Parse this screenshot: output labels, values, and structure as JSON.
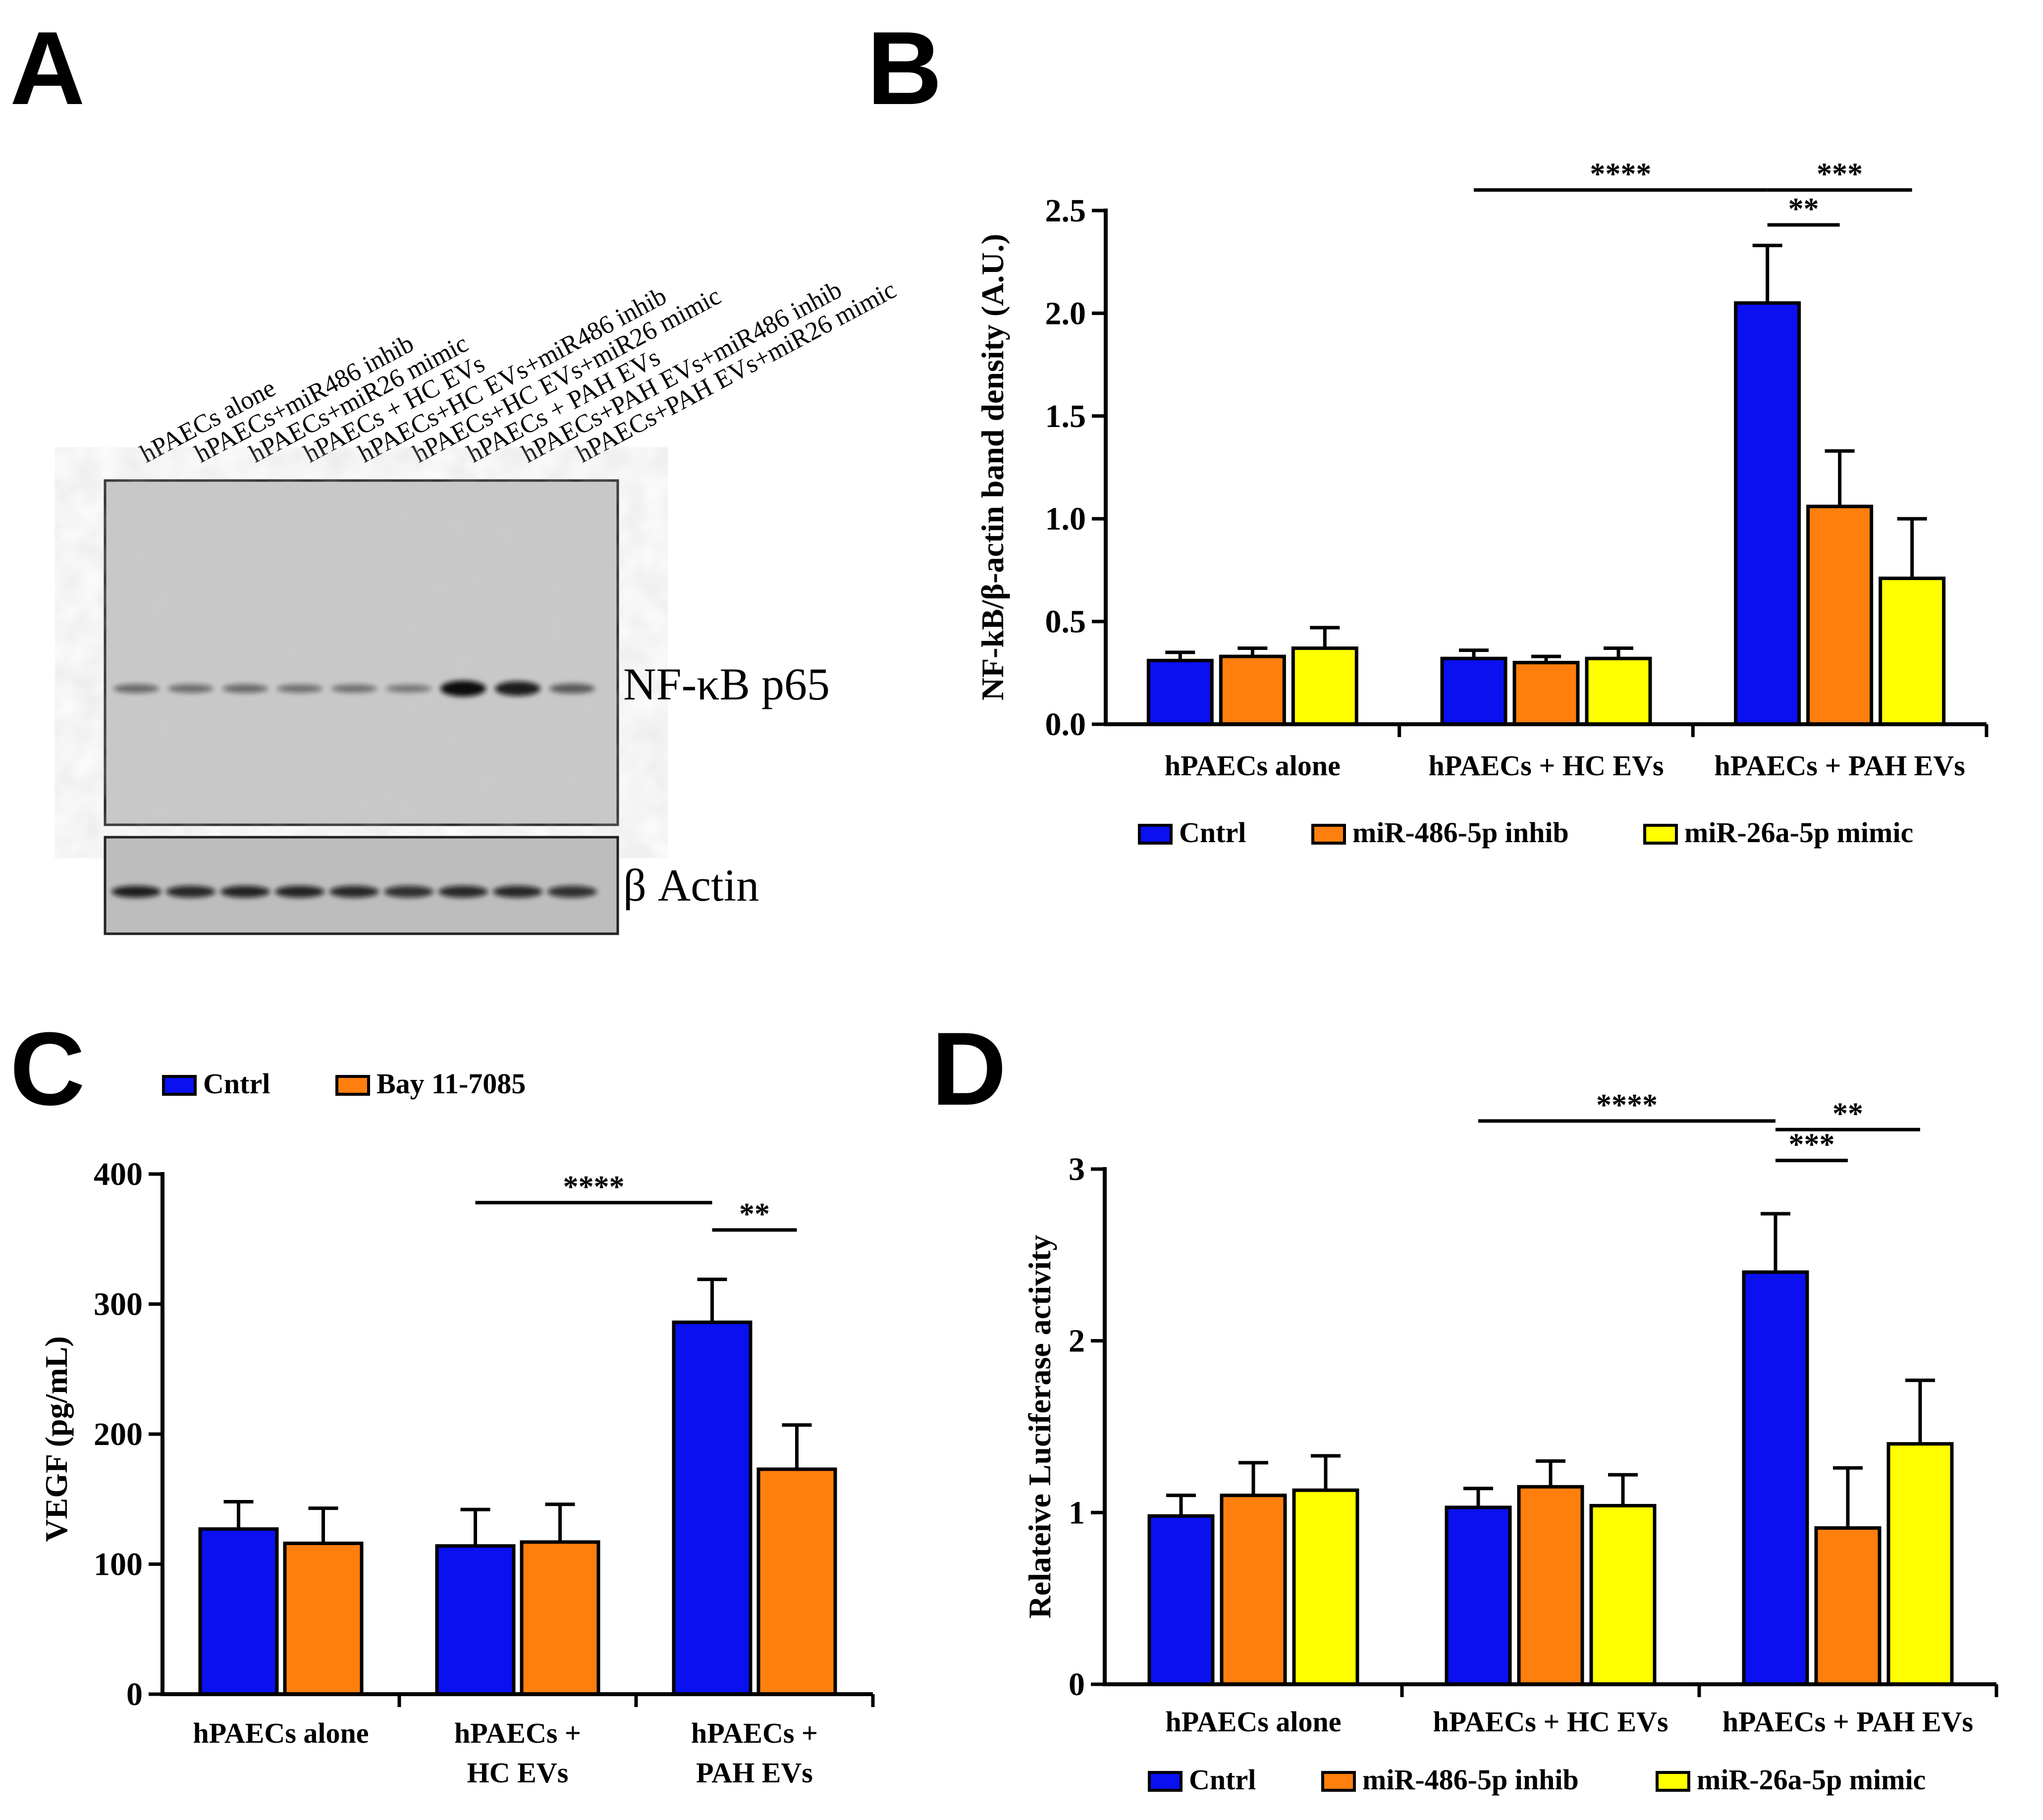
{
  "panels": {
    "A": {
      "letter": "A",
      "lane_labels": [
        "hPAECs alone",
        "hPAECs+miR486 inhib",
        "hPAECs+miR26 mimic",
        "hPAECs + HC EVs",
        "hPAECs+HC EVs+miR486 inhib",
        "hPAECs+HC EVs+miR26 mimic",
        "hPAECs + PAH EVs",
        "hPAECs+PAH EVs+miR486 inhib",
        "hPAECs+PAH EVs+miR26 mimic"
      ],
      "blot_labels": {
        "nfkb": "NF-κB p65",
        "actin": "β Actin"
      },
      "band_intensities": {
        "nfkb": [
          0.35,
          0.32,
          0.34,
          0.3,
          0.3,
          0.25,
          1.0,
          0.88,
          0.45
        ],
        "actin": [
          0.9,
          0.85,
          0.88,
          0.88,
          0.85,
          0.8,
          0.85,
          0.85,
          0.8
        ]
      }
    },
    "B": {
      "letter": "B"
    },
    "C": {
      "letter": "C"
    },
    "D": {
      "letter": "D"
    }
  },
  "chart_data": [
    {
      "panel": "B",
      "type": "bar",
      "title": "",
      "ylabel": "NF-kB/β-actin band density (A.U.)",
      "xlabel": "",
      "ylim": [
        0,
        2.5
      ],
      "yticks": [
        0,
        0.5,
        1.0,
        1.5,
        2.0,
        2.5
      ],
      "ytick_labels": [
        "0.0",
        "0.5",
        "1.0",
        "1.5",
        "2.0",
        "2.5"
      ],
      "categories": [
        "hPAECs alone",
        "hPAECs + HC EVs",
        "hPAECs + PAH EVs"
      ],
      "series": [
        {
          "name": "Cntrl",
          "color": "#0a10f0",
          "values": [
            0.31,
            0.32,
            2.05
          ],
          "errors": [
            0.04,
            0.04,
            0.28
          ]
        },
        {
          "name": "miR-486-5p inhib",
          "color": "#ff7f0e",
          "values": [
            0.33,
            0.3,
            1.06
          ],
          "errors": [
            0.04,
            0.03,
            0.27
          ]
        },
        {
          "name": "miR-26a-5p mimic",
          "color": "#ffff00",
          "values": [
            0.37,
            0.32,
            0.71
          ],
          "errors": [
            0.1,
            0.05,
            0.29
          ]
        }
      ],
      "significance": [
        {
          "label": "****",
          "from": [
            1,
            0
          ],
          "to": [
            2,
            0
          ],
          "y": 2.6
        },
        {
          "label": "***",
          "from": [
            2,
            0
          ],
          "to": [
            2,
            2
          ],
          "y": 2.6
        },
        {
          "label": "**",
          "from": [
            2,
            0
          ],
          "to": [
            2,
            1
          ],
          "y": 2.43
        }
      ],
      "legend": "bottom"
    },
    {
      "panel": "C",
      "type": "bar",
      "title": "",
      "ylabel": "VEGF (pg/mL)",
      "xlabel": "",
      "ylim": [
        0,
        400
      ],
      "yticks": [
        0,
        100,
        200,
        300,
        400
      ],
      "ytick_labels": [
        "0",
        "100",
        "200",
        "300",
        "400"
      ],
      "categories": [
        "hPAECs alone",
        "hPAECs + HC EVs",
        "hPAECs + PAH EVs"
      ],
      "category_lines": [
        [
          "hPAECs alone"
        ],
        [
          "hPAECs +",
          "HC EVs"
        ],
        [
          "hPAECs +",
          "PAH EVs"
        ]
      ],
      "series": [
        {
          "name": "Cntrl",
          "color": "#0a10f0",
          "values": [
            127,
            114,
            286
          ],
          "errors": [
            21,
            28,
            33
          ]
        },
        {
          "name": "Bay 11-7085",
          "color": "#ff7f0e",
          "values": [
            116,
            117,
            173
          ],
          "errors": [
            27,
            29,
            34
          ]
        }
      ],
      "significance": [
        {
          "label": "****",
          "from": [
            1,
            0
          ],
          "to": [
            2,
            0
          ],
          "y": 378
        },
        {
          "label": "**",
          "from": [
            2,
            0
          ],
          "to": [
            2,
            1
          ],
          "y": 357
        }
      ],
      "legend": "top"
    },
    {
      "panel": "D",
      "type": "bar",
      "title": "",
      "ylabel": "Relateive Luciferase activity",
      "xlabel": "",
      "ylim": [
        0,
        3
      ],
      "yticks": [
        0,
        1,
        2,
        3
      ],
      "ytick_labels": [
        "0",
        "1",
        "2",
        "3"
      ],
      "categories": [
        "hPAECs alone",
        "hPAECs + HC EVs",
        "hPAECs + PAH EVs"
      ],
      "series": [
        {
          "name": "Cntrl",
          "color": "#0a10f0",
          "values": [
            0.98,
            1.03,
            2.4
          ],
          "errors": [
            0.12,
            0.11,
            0.34
          ]
        },
        {
          "name": "miR-486-5p inhib",
          "color": "#ff7f0e",
          "values": [
            1.1,
            1.15,
            0.91
          ],
          "errors": [
            0.19,
            0.15,
            0.35
          ]
        },
        {
          "name": "miR-26a-5p mimic",
          "color": "#ffff00",
          "values": [
            1.13,
            1.04,
            1.4
          ],
          "errors": [
            0.2,
            0.18,
            0.37
          ]
        }
      ],
      "significance": [
        {
          "label": "****",
          "from": [
            1,
            0
          ],
          "to": [
            2,
            0
          ],
          "y": 3.28
        },
        {
          "label": "**",
          "from": [
            2,
            0
          ],
          "to": [
            2,
            2
          ],
          "y": 3.23
        },
        {
          "label": "***",
          "from": [
            2,
            0
          ],
          "to": [
            2,
            1
          ],
          "y": 3.05
        }
      ],
      "legend": "bottom"
    }
  ]
}
